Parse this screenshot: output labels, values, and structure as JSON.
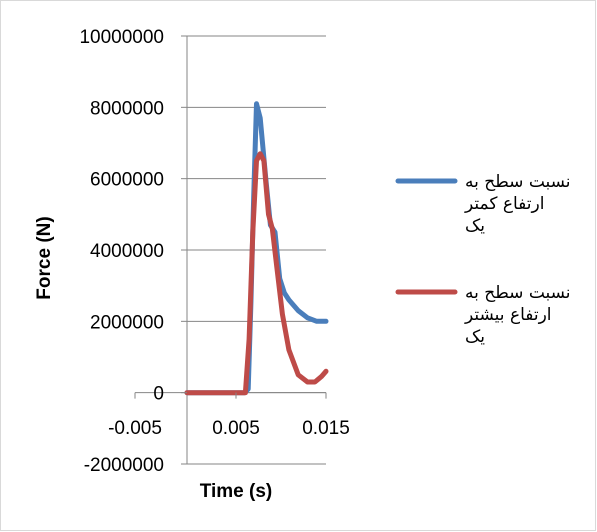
{
  "chart_data": {
    "type": "line",
    "title": "",
    "xlabel": "Time (s)",
    "ylabel": "Force (N)",
    "xlim": [
      -0.005,
      0.015
    ],
    "ylim": [
      -2000000,
      10000000
    ],
    "x_ticks": [
      -0.005,
      0.005,
      0.015
    ],
    "x_tick_labels": [
      "-0.005",
      "0.005",
      "0.015"
    ],
    "y_ticks": [
      -2000000,
      0,
      2000000,
      4000000,
      6000000,
      8000000,
      10000000
    ],
    "y_tick_labels": [
      "-2000000",
      "0",
      "2000000",
      "4000000",
      "6000000",
      "8000000",
      "10000000"
    ],
    "grid": "horizontal",
    "legend_position": "right",
    "series": [
      {
        "name_lines": [
          "نسبت سطح به",
          "ارتفاع کمتر",
          "یک"
        ],
        "color": "#4a7ebb",
        "points": [
          [
            0.0,
            0
          ],
          [
            0.0062,
            0
          ],
          [
            0.0066,
            100000
          ],
          [
            0.0069,
            2500000
          ],
          [
            0.0072,
            5500000
          ],
          [
            0.0075,
            8100000
          ],
          [
            0.0079,
            7700000
          ],
          [
            0.0085,
            6000000
          ],
          [
            0.009,
            4700000
          ],
          [
            0.0095,
            4500000
          ],
          [
            0.01,
            3200000
          ],
          [
            0.0105,
            2800000
          ],
          [
            0.011,
            2600000
          ],
          [
            0.012,
            2300000
          ],
          [
            0.013,
            2100000
          ],
          [
            0.014,
            2000000
          ],
          [
            0.015,
            2000000
          ]
        ]
      },
      {
        "name_lines": [
          "نسبت سطح به",
          "ارتفاع بیشتر",
          "یک"
        ],
        "color": "#be4b48",
        "points": [
          [
            0.0,
            0
          ],
          [
            0.0063,
            0
          ],
          [
            0.0067,
            1500000
          ],
          [
            0.0071,
            4500000
          ],
          [
            0.0075,
            6500000
          ],
          [
            0.0079,
            6700000
          ],
          [
            0.0083,
            6500000
          ],
          [
            0.0088,
            5000000
          ],
          [
            0.0092,
            4600000
          ],
          [
            0.0097,
            3500000
          ],
          [
            0.0103,
            2200000
          ],
          [
            0.011,
            1200000
          ],
          [
            0.012,
            500000
          ],
          [
            0.013,
            300000
          ],
          [
            0.0138,
            300000
          ],
          [
            0.0145,
            450000
          ],
          [
            0.015,
            600000
          ]
        ]
      }
    ]
  }
}
